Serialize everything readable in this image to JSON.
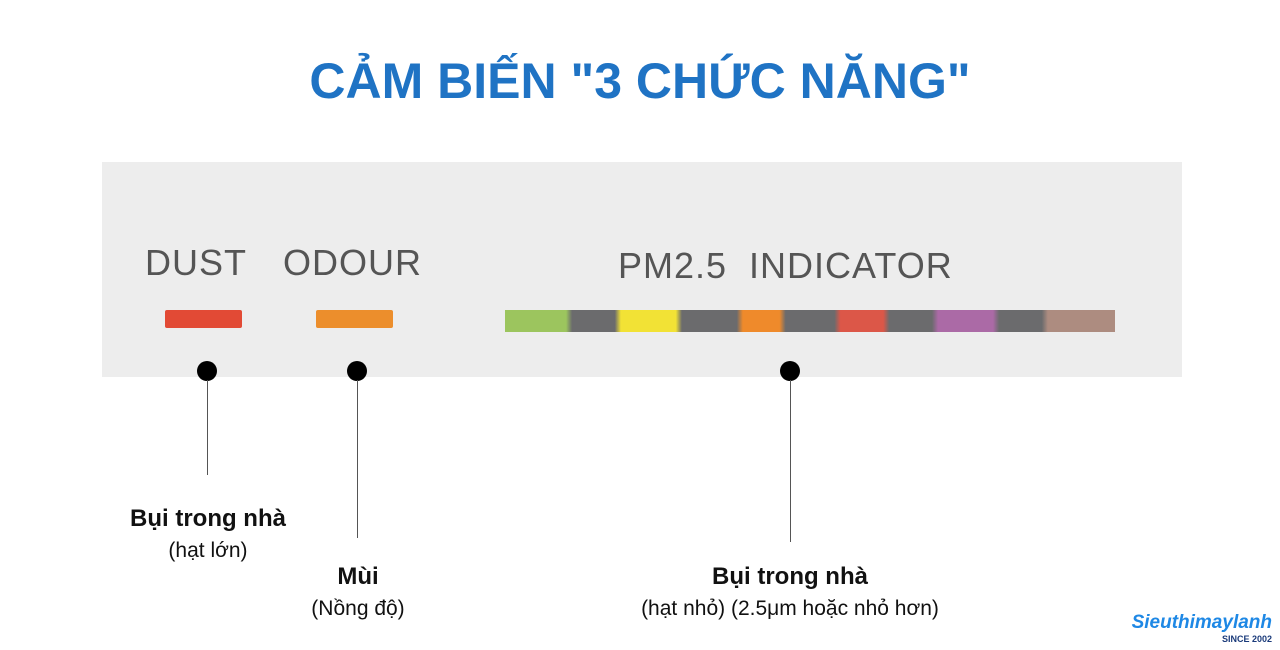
{
  "title": "CẢM BIẾN \"3 CHỨC NĂNG\"",
  "panel": {
    "dust": "DUST",
    "odour": "ODOUR",
    "pm": "PM2.5  INDICATOR"
  },
  "colors": {
    "dust": "#e24a35",
    "odour": "#ec8e2c",
    "title": "#1f73c4"
  },
  "captions": [
    {
      "title": "Bụi trong nhà",
      "sub": "(hạt lớn)"
    },
    {
      "title": "Mùi",
      "sub": "(Nồng độ)"
    },
    {
      "title": "Bụi trong nhà",
      "sub": "(hạt nhỏ) (2.5μm hoặc nhỏ hơn)"
    }
  ],
  "logo": {
    "name": "Sieuthimaylanh",
    "since": "SINCE 2002"
  }
}
